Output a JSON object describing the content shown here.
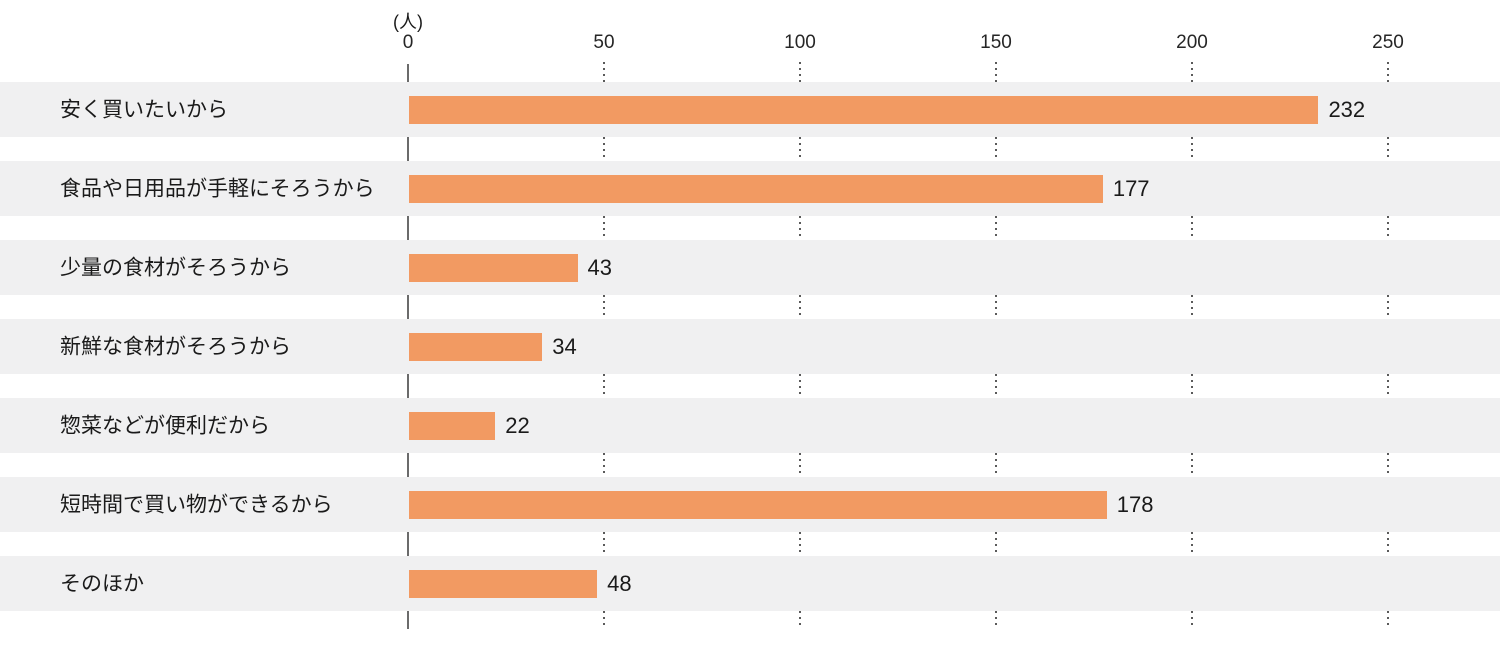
{
  "chart_data": {
    "type": "bar",
    "orientation": "horizontal",
    "title": "",
    "unit_label": "(人)",
    "categories": [
      "安く買いたいから",
      "食品や日用品が手軽にそろうから",
      "少量の食材がそろうから",
      "新鮮な食材がそろうから",
      "惣菜などが便利だから",
      "短時間で買い物ができるから",
      "そのほか"
    ],
    "values": [
      232,
      177,
      43,
      34,
      22,
      178,
      48
    ],
    "xlabel": "",
    "ylabel": "",
    "xlim": [
      0,
      250
    ],
    "x_ticks": [
      0,
      50,
      100,
      150,
      200,
      250
    ],
    "grid": "dotted vertical gridlines at each tick, shown only in gaps between row bands",
    "legend": "none",
    "colors": {
      "bar": "#f29a62",
      "row_band": "#f0f0f1",
      "axis_line": "#6b6b6b",
      "grid_dots": "#5a5a5a",
      "text": "#1a1a1a"
    }
  }
}
